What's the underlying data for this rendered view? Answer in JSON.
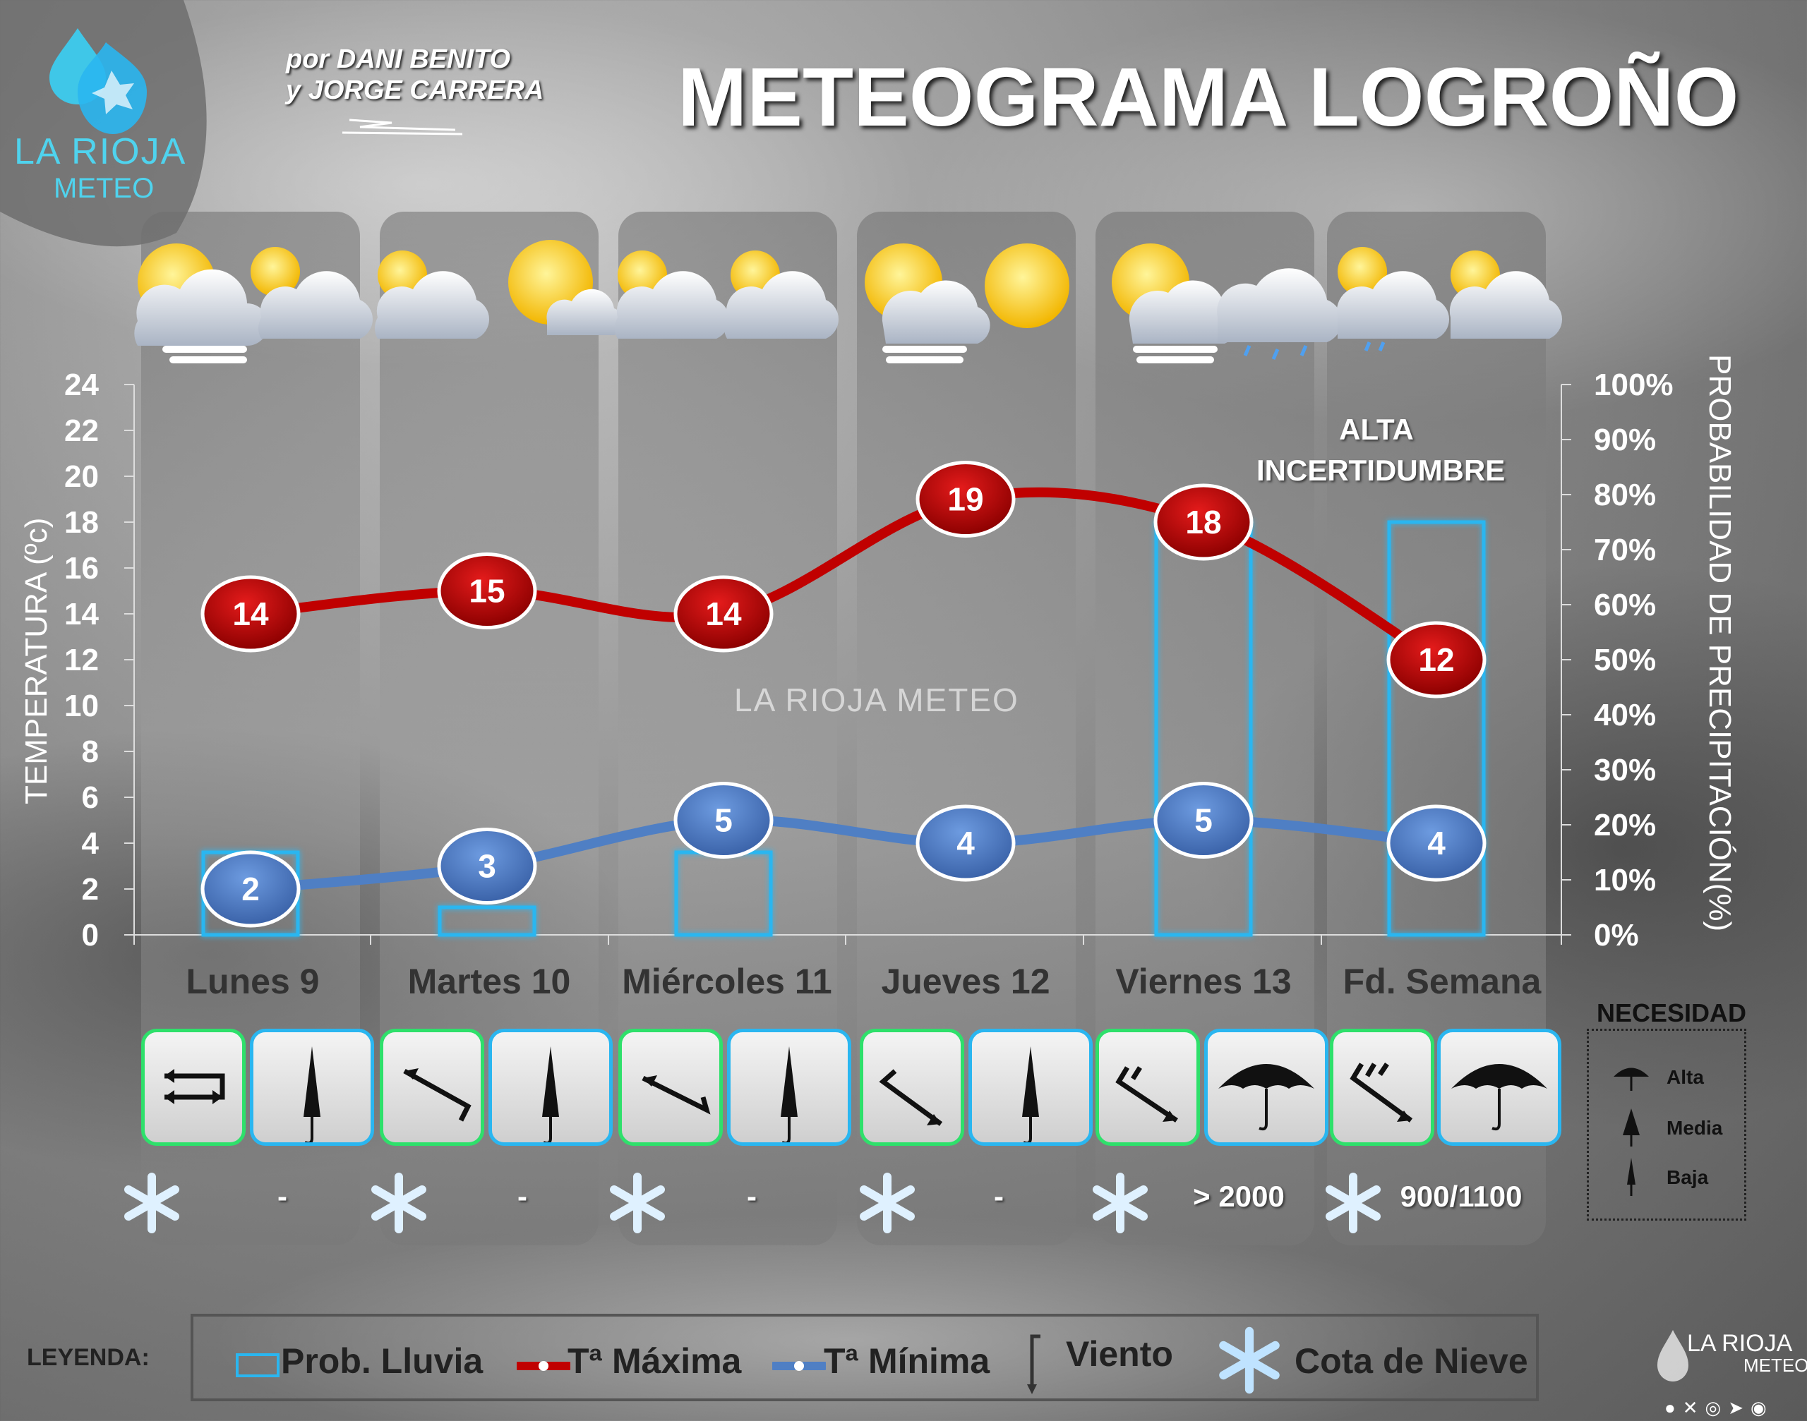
{
  "header": {
    "title": "METEOGRAMA LOGROÑO",
    "authors_line1": "por DANI BENITO",
    "authors_line2": "y JORGE CARRERA",
    "logo_line1": "LA RIOJA",
    "logo_line2": "METEO"
  },
  "chart_data": {
    "type": "line",
    "categories": [
      "Lunes 9",
      "Martes 10",
      "Miércoles 11",
      "Jueves 12",
      "Viernes 13",
      "Fd. Semana"
    ],
    "series": [
      {
        "name": "Tª Máxima",
        "values": [
          14,
          15,
          14,
          19,
          18,
          12
        ],
        "color": "#c00000"
      },
      {
        "name": "Tª Mínima",
        "values": [
          2,
          3,
          5,
          4,
          5,
          4
        ],
        "color": "#4f7fc4"
      }
    ],
    "bars": {
      "name": "Prob. Lluvia",
      "values": [
        15,
        5,
        15,
        0,
        75,
        75
      ],
      "color": "#2ab6f0"
    },
    "ylabel": "TEMPERATURA (ºc)",
    "ylabel_right": "PROBABILIDAD DE PRECIPITACIÓN(%)",
    "ylim": [
      0,
      24
    ],
    "ylim_right": [
      0,
      100
    ],
    "yticks": [
      "0",
      "2",
      "4",
      "6",
      "8",
      "10",
      "12",
      "14",
      "16",
      "18",
      "20",
      "22",
      "24"
    ],
    "yticks_right": [
      "0%",
      "10%",
      "20%",
      "30%",
      "40%",
      "50%",
      "60%",
      "70%",
      "80%",
      "90%",
      "100%"
    ],
    "annotation": "ALTA INCERTIDUMBRE",
    "grid": false
  },
  "annotation_lines": [
    "ALTA",
    "INCERTIDUMBRE"
  ],
  "watermark": "LA RIOJA METEO",
  "days": [
    {
      "label": "Lunes 9",
      "snow": "-",
      "umbrella": "Baja"
    },
    {
      "label": "Martes 10",
      "snow": "-",
      "umbrella": "Baja"
    },
    {
      "label": "Miércoles 11",
      "snow": "-",
      "umbrella": "Baja"
    },
    {
      "label": "Jueves 12",
      "snow": "-",
      "umbrella": "Baja"
    },
    {
      "label": "Viernes 13",
      "snow": "> 2000",
      "umbrella": "Alta"
    },
    {
      "label": "Fd. Semana",
      "snow": "900/1100",
      "umbrella": "Alta"
    }
  ],
  "necesidad": {
    "title": "NECESIDAD",
    "levels": [
      "Alta",
      "Media",
      "Baja"
    ]
  },
  "legend": {
    "label": "LEYENDA:",
    "items": [
      "Prob. Lluvia",
      "Tª Máxima",
      "Tª Mínima",
      "Viento",
      "Cota de Nieve"
    ]
  },
  "footer": {
    "brand_line1": "LA RIOJA",
    "brand_line2": "METEO"
  }
}
